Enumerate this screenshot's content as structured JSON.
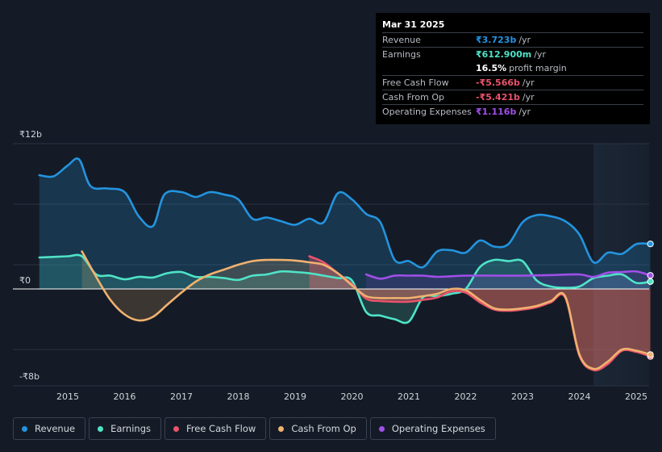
{
  "colors": {
    "revenue": "#2394df",
    "earnings": "#4fe3c7",
    "fcf": "#e8536b",
    "cfo": "#f0b26f",
    "opex": "#a04fe8",
    "grid": "#2b3342",
    "zero": "#ffffff",
    "text": "#d0d3d8"
  },
  "tooltip": {
    "date": "Mar 31 2025",
    "rows": [
      {
        "label": "Revenue",
        "value": "₹3.723b",
        "unit": "/yr",
        "color": "#2394df"
      },
      {
        "label": "Earnings",
        "value": "₹612.900m",
        "unit": "/yr",
        "color": "#4fe3c7"
      },
      {
        "label": "",
        "value": "16.5%",
        "unit": "profit margin",
        "color": "#ffffff"
      },
      {
        "label": "Free Cash Flow",
        "value": "-₹5.566b",
        "unit": "/yr",
        "color": "#e8536b"
      },
      {
        "label": "Cash From Op",
        "value": "-₹5.421b",
        "unit": "/yr",
        "color": "#e8536b"
      },
      {
        "label": "Operating Expenses",
        "value": "₹1.116b",
        "unit": "/yr",
        "color": "#a04fe8"
      }
    ]
  },
  "legend": [
    {
      "label": "Revenue",
      "color": "#2394df"
    },
    {
      "label": "Earnings",
      "color": "#4fe3c7"
    },
    {
      "label": "Free Cash Flow",
      "color": "#e8536b"
    },
    {
      "label": "Cash From Op",
      "color": "#f0b26f"
    },
    {
      "label": "Operating Expenses",
      "color": "#a04fe8"
    }
  ],
  "chart_data": {
    "type": "line",
    "title": "",
    "xlabel": "",
    "ylabel": "",
    "y_unit": "₹ billions",
    "ylim": [
      -8,
      12
    ],
    "xlim": [
      2014.5,
      2025.3
    ],
    "y_tick_labels": [
      {
        "value": 12,
        "label": "₹12b"
      },
      {
        "value": 0,
        "label": "₹0"
      },
      {
        "value": -8,
        "label": "-₹8b"
      }
    ],
    "x_ticks": [
      2015,
      2016,
      2017,
      2018,
      2019,
      2020,
      2021,
      2022,
      2023,
      2024,
      2025
    ],
    "x_tick_labels": [
      "2015",
      "2016",
      "2017",
      "2018",
      "2019",
      "2020",
      "2021",
      "2022",
      "2023",
      "2024",
      "2025"
    ],
    "forecast_start": 2024.25,
    "series": [
      {
        "name": "Revenue",
        "key": "revenue",
        "points": [
          [
            2014.5,
            9.4
          ],
          [
            2014.75,
            9.3
          ],
          [
            2015.0,
            10.2
          ],
          [
            2015.2,
            10.7
          ],
          [
            2015.4,
            8.5
          ],
          [
            2015.7,
            8.3
          ],
          [
            2016.0,
            8.0
          ],
          [
            2016.25,
            6.0
          ],
          [
            2016.5,
            5.2
          ],
          [
            2016.7,
            7.8
          ],
          [
            2017.0,
            8.0
          ],
          [
            2017.25,
            7.6
          ],
          [
            2017.5,
            8.0
          ],
          [
            2017.75,
            7.8
          ],
          [
            2018.0,
            7.4
          ],
          [
            2018.25,
            5.8
          ],
          [
            2018.5,
            5.9
          ],
          [
            2018.75,
            5.6
          ],
          [
            2019.0,
            5.3
          ],
          [
            2019.25,
            5.8
          ],
          [
            2019.5,
            5.5
          ],
          [
            2019.75,
            7.9
          ],
          [
            2020.0,
            7.4
          ],
          [
            2020.25,
            6.2
          ],
          [
            2020.5,
            5.5
          ],
          [
            2020.75,
            2.4
          ],
          [
            2021.0,
            2.3
          ],
          [
            2021.25,
            1.8
          ],
          [
            2021.5,
            3.1
          ],
          [
            2021.75,
            3.2
          ],
          [
            2022.0,
            3.0
          ],
          [
            2022.25,
            4.0
          ],
          [
            2022.5,
            3.5
          ],
          [
            2022.75,
            3.7
          ],
          [
            2023.0,
            5.5
          ],
          [
            2023.25,
            6.1
          ],
          [
            2023.5,
            6.0
          ],
          [
            2023.75,
            5.6
          ],
          [
            2024.0,
            4.5
          ],
          [
            2024.25,
            2.2
          ],
          [
            2024.5,
            3.0
          ],
          [
            2024.75,
            2.9
          ],
          [
            2025.0,
            3.7
          ],
          [
            2025.25,
            3.72
          ]
        ]
      },
      {
        "name": "Earnings",
        "key": "earnings",
        "points": [
          [
            2014.5,
            2.6
          ],
          [
            2014.75,
            2.65
          ],
          [
            2015.0,
            2.7
          ],
          [
            2015.25,
            2.7
          ],
          [
            2015.5,
            1.2
          ],
          [
            2015.75,
            1.1
          ],
          [
            2016.0,
            0.8
          ],
          [
            2016.25,
            1.0
          ],
          [
            2016.5,
            0.95
          ],
          [
            2016.75,
            1.3
          ],
          [
            2017.0,
            1.4
          ],
          [
            2017.25,
            1.0
          ],
          [
            2017.5,
            1.0
          ],
          [
            2017.75,
            0.9
          ],
          [
            2018.0,
            0.75
          ],
          [
            2018.25,
            1.1
          ],
          [
            2018.5,
            1.2
          ],
          [
            2018.75,
            1.45
          ],
          [
            2019.0,
            1.4
          ],
          [
            2019.25,
            1.3
          ],
          [
            2019.5,
            1.1
          ],
          [
            2019.75,
            0.9
          ],
          [
            2020.0,
            0.7
          ],
          [
            2020.25,
            -1.9
          ],
          [
            2020.5,
            -2.2
          ],
          [
            2020.75,
            -2.5
          ],
          [
            2021.0,
            -2.7
          ],
          [
            2021.25,
            -0.7
          ],
          [
            2021.5,
            -0.6
          ],
          [
            2021.75,
            -0.4
          ],
          [
            2022.0,
            0.0
          ],
          [
            2022.25,
            1.8
          ],
          [
            2022.5,
            2.4
          ],
          [
            2022.75,
            2.3
          ],
          [
            2023.0,
            2.3
          ],
          [
            2023.25,
            0.7
          ],
          [
            2023.5,
            0.2
          ],
          [
            2023.75,
            0.1
          ],
          [
            2024.0,
            0.2
          ],
          [
            2024.25,
            0.9
          ],
          [
            2024.5,
            1.1
          ],
          [
            2024.75,
            1.2
          ],
          [
            2025.0,
            0.5
          ],
          [
            2025.25,
            0.61
          ]
        ]
      },
      {
        "name": "Free Cash Flow",
        "key": "fcf",
        "points": [
          [
            2019.25,
            2.7
          ],
          [
            2019.5,
            2.2
          ],
          [
            2019.75,
            1.3
          ],
          [
            2020.0,
            0.4
          ],
          [
            2020.25,
            -0.8
          ],
          [
            2020.5,
            -1.0
          ],
          [
            2020.75,
            -1.05
          ],
          [
            2021.0,
            -1.05
          ],
          [
            2021.25,
            -0.9
          ],
          [
            2021.5,
            -0.7
          ],
          [
            2021.75,
            -0.2
          ],
          [
            2022.0,
            -0.3
          ],
          [
            2022.25,
            -1.1
          ],
          [
            2022.5,
            -1.7
          ],
          [
            2022.75,
            -1.8
          ],
          [
            2023.0,
            -1.7
          ],
          [
            2023.25,
            -1.5
          ],
          [
            2023.5,
            -1.1
          ],
          [
            2023.75,
            -0.7
          ],
          [
            2024.0,
            -5.5
          ],
          [
            2024.25,
            -6.7
          ],
          [
            2024.5,
            -6.2
          ],
          [
            2024.75,
            -5.1
          ],
          [
            2025.0,
            -5.2
          ],
          [
            2025.25,
            -5.57
          ]
        ]
      },
      {
        "name": "Cash From Op",
        "key": "cfo",
        "points": [
          [
            2015.25,
            3.1
          ],
          [
            2015.5,
            1.0
          ],
          [
            2015.75,
            -0.9
          ],
          [
            2016.0,
            -2.1
          ],
          [
            2016.25,
            -2.6
          ],
          [
            2016.5,
            -2.3
          ],
          [
            2016.75,
            -1.3
          ],
          [
            2017.0,
            -0.3
          ],
          [
            2017.25,
            0.6
          ],
          [
            2017.5,
            1.2
          ],
          [
            2017.75,
            1.6
          ],
          [
            2018.0,
            2.0
          ],
          [
            2018.25,
            2.3
          ],
          [
            2018.5,
            2.4
          ],
          [
            2018.75,
            2.4
          ],
          [
            2019.0,
            2.35
          ],
          [
            2019.25,
            2.2
          ],
          [
            2019.5,
            2.0
          ],
          [
            2019.75,
            1.3
          ],
          [
            2020.0,
            0.3
          ],
          [
            2020.25,
            -0.6
          ],
          [
            2020.5,
            -0.75
          ],
          [
            2020.75,
            -0.75
          ],
          [
            2021.0,
            -0.75
          ],
          [
            2021.25,
            -0.6
          ],
          [
            2021.5,
            -0.4
          ],
          [
            2021.75,
            0.0
          ],
          [
            2022.0,
            -0.1
          ],
          [
            2022.25,
            -0.9
          ],
          [
            2022.5,
            -1.6
          ],
          [
            2022.75,
            -1.7
          ],
          [
            2023.0,
            -1.6
          ],
          [
            2023.25,
            -1.4
          ],
          [
            2023.5,
            -1.0
          ],
          [
            2023.75,
            -0.6
          ],
          [
            2024.0,
            -5.4
          ],
          [
            2024.25,
            -6.6
          ],
          [
            2024.5,
            -6.0
          ],
          [
            2024.75,
            -5.0
          ],
          [
            2025.0,
            -5.1
          ],
          [
            2025.25,
            -5.42
          ]
        ]
      },
      {
        "name": "Operating Expenses",
        "key": "opex",
        "points": [
          [
            2020.25,
            1.2
          ],
          [
            2020.5,
            0.85
          ],
          [
            2020.75,
            1.1
          ],
          [
            2021.0,
            1.1
          ],
          [
            2021.25,
            1.1
          ],
          [
            2021.5,
            1.0
          ],
          [
            2021.75,
            1.05
          ],
          [
            2022.0,
            1.1
          ],
          [
            2022.5,
            1.1
          ],
          [
            2023.0,
            1.1
          ],
          [
            2023.5,
            1.15
          ],
          [
            2024.0,
            1.2
          ],
          [
            2024.25,
            1.0
          ],
          [
            2024.5,
            1.35
          ],
          [
            2024.75,
            1.4
          ],
          [
            2025.0,
            1.45
          ],
          [
            2025.25,
            1.12
          ]
        ]
      }
    ]
  }
}
